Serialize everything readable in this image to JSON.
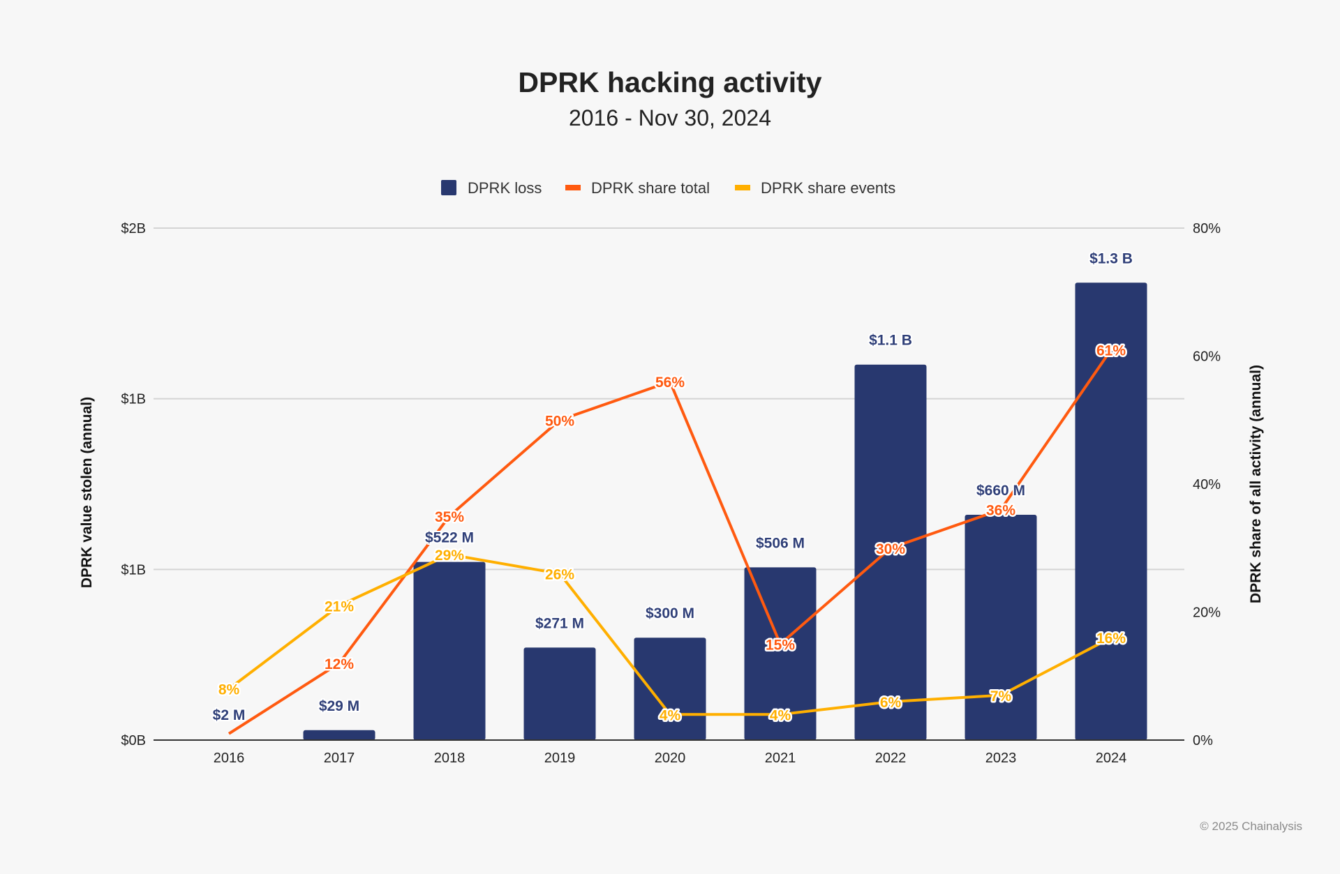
{
  "chart_data": {
    "type": "bar",
    "title": "DPRK hacking activity",
    "subtitle": "2016 - Nov 30, 2024",
    "categories": [
      "2016",
      "2017",
      "2018",
      "2019",
      "2020",
      "2021",
      "2022",
      "2023",
      "2024"
    ],
    "ylabel": "DPRK value stolen (annual)",
    "ylabel_right": "DPRK share of all activity (annual)",
    "ylim": [
      0,
      1500
    ],
    "ylim_right": [
      0,
      80
    ],
    "yticks": [
      {
        "value": 0,
        "label": "$0B"
      },
      {
        "value": 500,
        "label": "$1B"
      },
      {
        "value": 1000,
        "label": "$1B"
      },
      {
        "value": 1500,
        "label": "$2B"
      }
    ],
    "yticks_right": [
      {
        "value": 0,
        "label": "0%"
      },
      {
        "value": 20,
        "label": "20%"
      },
      {
        "value": 40,
        "label": "40%"
      },
      {
        "value": 60,
        "label": "60%"
      },
      {
        "value": 80,
        "label": "80%"
      }
    ],
    "grid": true,
    "legend": "top",
    "series": [
      {
        "name": "DPRK loss",
        "type": "bar",
        "axis": "left",
        "unit": "USD millions",
        "color": "#28386f",
        "values": [
          2,
          29,
          522,
          271,
          300,
          506,
          1100,
          660,
          1340
        ],
        "labels": [
          "$2  M",
          "$29  M",
          "$522  M",
          "$271  M",
          "$300  M",
          "$506  M",
          "$1.1 B",
          "$660  M",
          "$1.3 B"
        ]
      },
      {
        "name": "DPRK share total",
        "type": "line",
        "axis": "right",
        "color": "#ff5a10",
        "values": [
          1,
          12,
          35,
          50,
          56,
          15,
          30,
          36,
          61
        ],
        "labels": [
          "",
          "12%",
          "35%",
          "50%",
          "56%",
          "15%",
          "30%",
          "36%",
          "61%"
        ]
      },
      {
        "name": "DPRK share events",
        "type": "line",
        "axis": "right",
        "color": "#ffaf00",
        "values": [
          8,
          21,
          29,
          26,
          4,
          4,
          6,
          7,
          16
        ],
        "labels": [
          "8%",
          "21%",
          "29%",
          "26%",
          "4%",
          "4%",
          "6%",
          "7%",
          "16%"
        ]
      }
    ]
  },
  "footer": "© 2025 Chainalysis"
}
